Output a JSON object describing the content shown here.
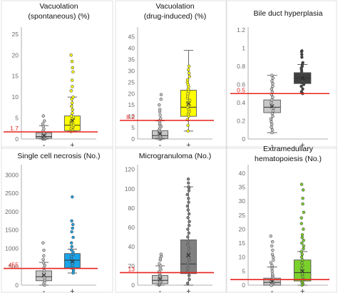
{
  "chart_data": [
    {
      "type": "box",
      "title_lines": [
        "Vacuolation",
        "(spontaneous) (%)"
      ],
      "ylim": [
        0,
        26
      ],
      "yticks": [
        0,
        5,
        10,
        15,
        20,
        25
      ],
      "threshold": 1.7,
      "threshold_label": "1.7",
      "categories": [
        "-",
        "+"
      ],
      "boxes": [
        {
          "name": "-",
          "color": "#c8c8c8",
          "whisker_low": 0,
          "q1": 0.2,
          "median": 0.6,
          "mean": 0.8,
          "q3": 1.5,
          "whisker_high": 3.2,
          "points": [
            0,
            0,
            0,
            0.1,
            0.2,
            0.3,
            0.4,
            0.5,
            0.6,
            0.8,
            1.0,
            1.2,
            1.5,
            1.9,
            2.4,
            3.0,
            3.6,
            4.3,
            5.5
          ]
        },
        {
          "name": "+",
          "color": "#ffff00",
          "whisker_low": 1.8,
          "q1": 2.0,
          "median": 3.3,
          "mean": 4.4,
          "q3": 5.5,
          "whisker_high": 10,
          "points": [
            1.8,
            2.0,
            2.2,
            2.5,
            2.8,
            3.0,
            3.3,
            3.6,
            4.0,
            4.3,
            4.8,
            5.2,
            5.5,
            6.2,
            7.0,
            7.8,
            8.6,
            9.5,
            10,
            11.5,
            12.5,
            14,
            16,
            17,
            18.5,
            20
          ]
        }
      ]
    },
    {
      "type": "box",
      "title_lines": [
        "Vacuolation",
        "(drug-induced) (%)"
      ],
      "ylim": [
        0,
        48
      ],
      "yticks": [
        0,
        5,
        10,
        15,
        20,
        25,
        30,
        35,
        40,
        45
      ],
      "threshold": 8.2,
      "threshold_label": "8.2",
      "categories": [
        "-",
        "+"
      ],
      "boxes": [
        {
          "name": "-",
          "color": "#c8c8c8",
          "whisker_low": 0,
          "q1": 0.3,
          "median": 1.5,
          "mean": 2.3,
          "q3": 3.7,
          "whisker_high": 8,
          "points": [
            0,
            0,
            0.2,
            0.5,
            0.8,
            1.1,
            1.5,
            2.0,
            2.5,
            3.0,
            3.5,
            4.0,
            4.8,
            5.5,
            6.3,
            7.0,
            8.0,
            9.0,
            10.5,
            12,
            13,
            15,
            17.5,
            19.5
          ]
        },
        {
          "name": "+",
          "color": "#ffff00",
          "whisker_low": 3.5,
          "q1": 10,
          "median": 14,
          "mean": 15.5,
          "q3": 21.5,
          "whisker_high": 39,
          "points": [
            3.5,
            6,
            8.5,
            10,
            11,
            12,
            13,
            14,
            15,
            16,
            17,
            18,
            19,
            20,
            21,
            22,
            23,
            24,
            25,
            26,
            27.5,
            29,
            30.5,
            32
          ]
        }
      ]
    },
    {
      "type": "box",
      "title_lines": [
        "Bile duct hyperplasia"
      ],
      "ylim": [
        0,
        1.2
      ],
      "yticks": [
        0,
        0.2,
        0.4,
        0.6,
        0.8,
        1,
        1.2
      ],
      "threshold": 0.5,
      "threshold_label": "0.5",
      "categories": [
        "-",
        "+"
      ],
      "boxes": [
        {
          "name": "-",
          "color": "#c8c8c8",
          "whisker_low": 0.07,
          "q1": 0.29,
          "median": 0.35,
          "mean": 0.36,
          "q3": 0.43,
          "whisker_high": 0.7,
          "points": [
            0.07,
            0.1,
            0.13,
            0.16,
            0.19,
            0.22,
            0.25,
            0.28,
            0.31,
            0.34,
            0.37,
            0.4,
            0.43,
            0.46,
            0.49,
            0.52,
            0.55,
            0.58,
            0.61,
            0.64,
            0.67,
            0.7
          ]
        },
        {
          "name": "+",
          "color": "#404040",
          "whisker_low": 0.5,
          "q1": 0.61,
          "median": 0.67,
          "mean": 0.67,
          "q3": 0.73,
          "whisker_high": 0.82,
          "points": [
            0.5,
            0.52,
            0.55,
            0.58,
            0.6,
            0.62,
            0.64,
            0.66,
            0.68,
            0.7,
            0.72,
            0.74,
            0.76,
            0.78,
            0.8,
            0.82,
            0.84,
            0.9,
            0.93,
            0.96,
            0.97
          ]
        }
      ]
    },
    {
      "type": "box",
      "title_lines": [
        "Single cell necrosis (No.)"
      ],
      "ylim": [
        0,
        3200
      ],
      "yticks": [
        0,
        500,
        1000,
        1500,
        2000,
        2500,
        3000
      ],
      "threshold": 455,
      "threshold_label": "455",
      "categories": [
        "-",
        "+"
      ],
      "boxes": [
        {
          "name": "-",
          "color": "#c8c8c8",
          "whisker_low": 0,
          "q1": 120,
          "median": 230,
          "mean": 270,
          "q3": 390,
          "whisker_high": 620,
          "points": [
            0,
            40,
            90,
            140,
            200,
            260,
            330,
            400,
            470,
            540,
            610,
            700,
            800,
            950,
            1150
          ]
        },
        {
          "name": "+",
          "color": "#1aa3e8",
          "whisker_low": 330,
          "q1": 470,
          "median": 680,
          "mean": 650,
          "q3": 860,
          "whisker_high": 980,
          "points": [
            330,
            400,
            470,
            540,
            600,
            660,
            720,
            780,
            840,
            900,
            960,
            1050,
            1150,
            1300,
            1450,
            1550,
            1650,
            1750,
            2400
          ]
        }
      ]
    },
    {
      "type": "box",
      "title_lines": [
        "Microgranuloma (No.)"
      ],
      "ylim": [
        0,
        122
      ],
      "yticks": [
        0,
        20,
        40,
        60,
        80,
        100,
        120
      ],
      "threshold": 13,
      "threshold_label": "13",
      "categories": [
        "-",
        "+"
      ],
      "boxes": [
        {
          "name": "-",
          "color": "#c8c8c8",
          "whisker_low": 0,
          "q1": 1.5,
          "median": 5,
          "mean": 6,
          "q3": 10,
          "whisker_high": 20,
          "points": [
            0,
            0.5,
            1,
            2,
            3,
            4,
            5,
            6,
            7,
            8,
            9,
            10,
            11,
            12,
            14,
            16,
            18,
            20,
            22,
            26,
            28,
            30,
            32
          ]
        },
        {
          "name": "+",
          "color": "#808080",
          "whisker_low": 0,
          "q1": 12,
          "median": 22,
          "mean": 31,
          "q3": 47,
          "whisker_high": 102,
          "points": [
            2,
            6,
            10,
            14,
            18,
            22,
            26,
            30,
            34,
            38,
            42,
            46,
            50,
            54,
            58,
            62,
            66,
            70,
            74,
            78,
            82,
            86,
            90,
            94,
            98,
            101,
            102,
            106,
            110
          ]
        }
      ]
    },
    {
      "type": "box",
      "title_lines": [
        "Extramedullary",
        "hematopoiesis (No.)"
      ],
      "ylim": [
        0,
        42
      ],
      "yticks": [
        0,
        5,
        10,
        15,
        20,
        25,
        30,
        35,
        40
      ],
      "threshold": 2,
      "threshold_label": "",
      "categories": [
        "-",
        "+"
      ],
      "boxes": [
        {
          "name": "-",
          "color": "#c8c8c8",
          "whisker_low": 0,
          "q1": 0,
          "median": 1,
          "mean": 1.3,
          "q3": 2.5,
          "whisker_high": 6.5,
          "points": [
            0,
            0,
            0.5,
            1,
            1.5,
            2,
            2.5,
            3,
            3.5,
            4,
            5,
            6,
            7,
            8,
            9,
            10,
            11,
            12.5,
            14,
            15.5,
            17.5
          ]
        },
        {
          "name": "+",
          "color": "#7bd12b",
          "whisker_low": 0,
          "q1": 1.5,
          "median": 4.5,
          "mean": 5,
          "q3": 9,
          "whisker_high": 12,
          "points": [
            0,
            0.5,
            1,
            1.5,
            2,
            3,
            4,
            5,
            6,
            7,
            8,
            9,
            10,
            11,
            12,
            13,
            14,
            15,
            16,
            17,
            18,
            20,
            22,
            24,
            26,
            29,
            31,
            34,
            36
          ]
        }
      ]
    }
  ],
  "colors": {
    "threshold_line": "#e8231c",
    "box_stroke": "#555555",
    "axis": "#999999"
  }
}
